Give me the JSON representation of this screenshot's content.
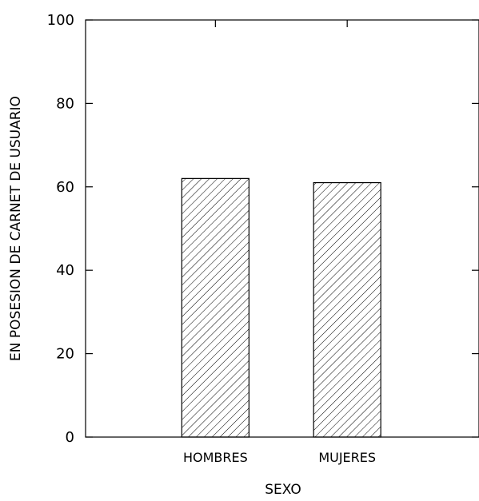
{
  "chart_data": {
    "type": "bar",
    "categories": [
      "HOMBRES",
      "MUJERES"
    ],
    "values": [
      62,
      61
    ],
    "xlabel": "SEXO",
    "ylabel": "EN POSESION DE CARNET DE USUARIO",
    "ylim": [
      0,
      100
    ],
    "yticks": [
      0,
      20,
      40,
      60,
      80,
      100
    ],
    "grid": false,
    "bar_fill": "diagonal-hatch"
  },
  "colors": {
    "axis": "#000000",
    "bar_stroke": "#000000",
    "background": "#ffffff"
  }
}
